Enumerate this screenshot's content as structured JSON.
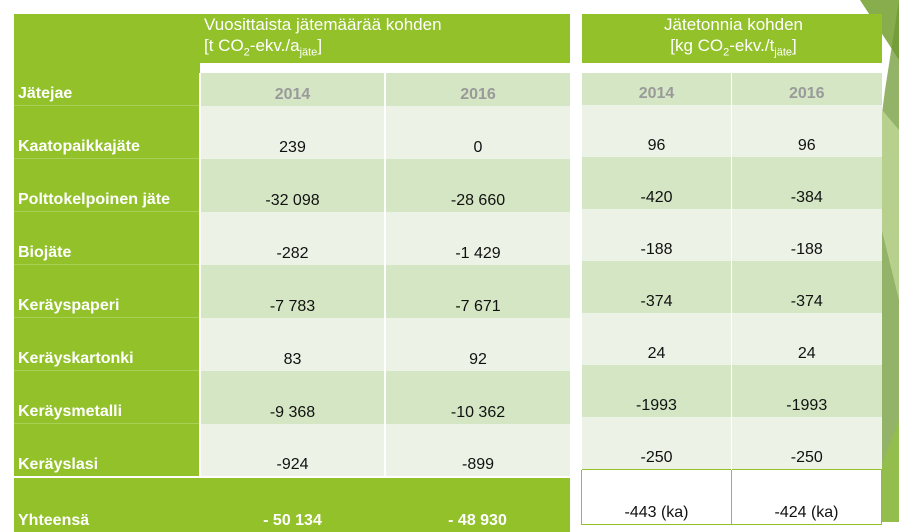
{
  "left_header": {
    "line1": "Vuosittaista jätemäärää kohden",
    "line2_main": "[t CO",
    "line2_sub": "2",
    "line2_mid": "-ekv./a",
    "line2_sub2": "jäte",
    "line2_end": "]"
  },
  "right_header": {
    "line1": "Jätetonnia kohden",
    "line2_main": "[kg CO",
    "line2_sub": "2",
    "line2_mid": "-ekv./t",
    "line2_sub2": "jäte",
    "line2_end": "]"
  },
  "column_label": "Jätejae",
  "years": [
    "2014",
    "2016"
  ],
  "rows": [
    {
      "label": "Kaatopaikkajäte",
      "annual": [
        "239",
        "0"
      ],
      "per_tonne": [
        "96",
        "96"
      ]
    },
    {
      "label": "Polttokelpoinen jäte",
      "annual": [
        "-32 098",
        "-28 660"
      ],
      "per_tonne": [
        "-420",
        "-384"
      ]
    },
    {
      "label": "Biojäte",
      "annual": [
        "-282",
        "-1 429"
      ],
      "per_tonne": [
        "-188",
        "-188"
      ]
    },
    {
      "label": "Keräyspaperi",
      "annual": [
        "-7 783",
        "-7 671"
      ],
      "per_tonne": [
        "-374",
        "-374"
      ]
    },
    {
      "label": "Keräyskartonki",
      "annual": [
        "83",
        "92"
      ],
      "per_tonne": [
        "24",
        "24"
      ]
    },
    {
      "label": "Keräysmetalli",
      "annual": [
        "-9 368",
        "-10 362"
      ],
      "per_tonne": [
        "-1993",
        "-1993"
      ]
    },
    {
      "label": "Keräyslasi",
      "annual": [
        "-924",
        "-899"
      ],
      "per_tonne": [
        "-250",
        "-250"
      ]
    }
  ],
  "total": {
    "label": "Yhteensä",
    "annual": [
      "- 50 134",
      "- 48 930"
    ],
    "per_tonne": [
      "-443 (ka)",
      "-424 (ka)"
    ]
  },
  "colors": {
    "green": "#92c12a",
    "light_row": "#ecf3e6",
    "mid_row": "#d4e6c3"
  }
}
